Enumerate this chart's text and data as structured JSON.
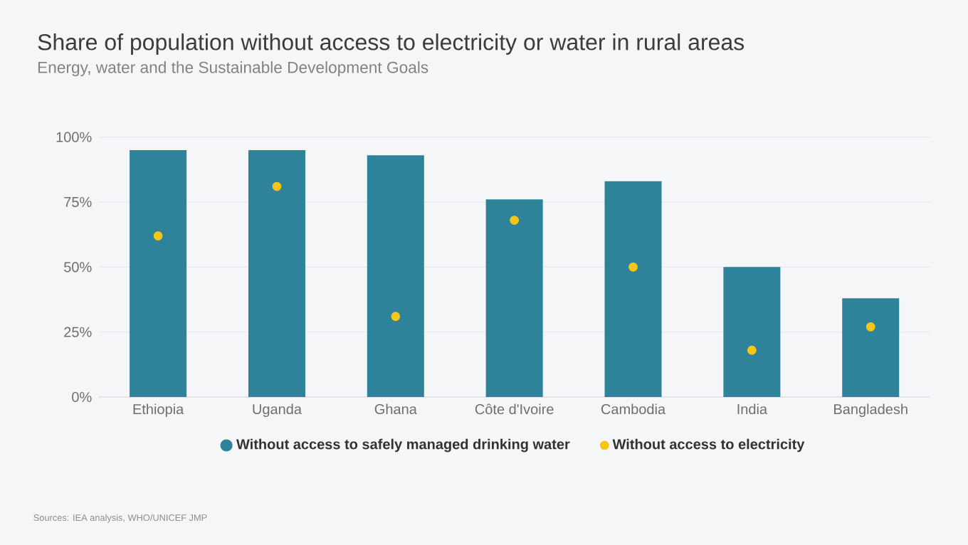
{
  "chart_data": {
    "type": "bar",
    "title": "Share of population without access to electricity or water in rural areas",
    "subtitle": "Energy, water and the Sustainable Development Goals",
    "categories": [
      "Ethiopia",
      "Uganda",
      "Ghana",
      "Côte d'Ivoire",
      "Cambodia",
      "India",
      "Bangladesh"
    ],
    "series": [
      {
        "name": "Without access to safely managed drinking water",
        "color": "#2e8299",
        "values": [
          95,
          95,
          93,
          76,
          83,
          50,
          38
        ]
      },
      {
        "name": "Without access to electricity",
        "type": "scatter",
        "color": "#f5c518",
        "x": [
          "Ethiopia",
          "Uganda",
          "Ghana",
          "Côte d'Ivoire",
          "Cambodia",
          "India",
          "Bangladesh"
        ],
        "values": [
          62,
          81,
          31,
          68,
          50,
          18,
          27
        ]
      }
    ],
    "ylim": [
      0,
      100
    ],
    "yticks": [
      {
        "value": 0,
        "label": "0%"
      },
      {
        "value": 25,
        "label": "25%"
      },
      {
        "value": 50,
        "label": "50%"
      },
      {
        "value": 75,
        "label": "75%"
      },
      {
        "value": 100,
        "label": "100%"
      }
    ],
    "grid": "y",
    "legend": "bottom",
    "marker": "circle",
    "annotations": [
      "Sources: IEA analysis, WHO/UNICEF JMP"
    ]
  }
}
